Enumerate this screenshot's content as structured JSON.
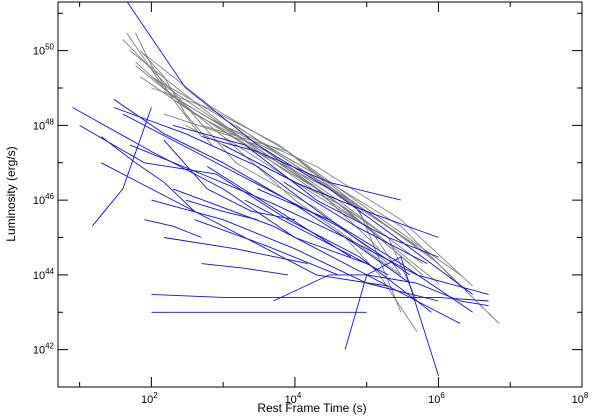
{
  "chart_data": {
    "type": "line",
    "title": "",
    "xlabel": "Rest Frame Time (s)",
    "ylabel": "Luminosity (erg/s)",
    "x_scale": "log",
    "y_scale": "log",
    "xlim": [
      5,
      100000000
    ],
    "ylim": [
      1e+41,
      2e+51
    ],
    "grid": false,
    "legend": "none",
    "x_ticks": [
      {
        "value": 100,
        "base": "10",
        "exp": "2"
      },
      {
        "value": 10000,
        "base": "10",
        "exp": "4"
      },
      {
        "value": 1000000,
        "base": "10",
        "exp": "6"
      },
      {
        "value": 100000000,
        "base": "10",
        "exp": "8"
      }
    ],
    "y_ticks": [
      {
        "value": 1e+42,
        "base": "10",
        "exp": "42"
      },
      {
        "value": 1e+44,
        "base": "10",
        "exp": "44"
      },
      {
        "value": 1e+46,
        "base": "10",
        "exp": "46"
      },
      {
        "value": 1e+48,
        "base": "10",
        "exp": "48"
      },
      {
        "value": 1e+50,
        "base": "10",
        "exp": "50"
      }
    ],
    "colors": {
      "grey_series": "#808080",
      "blue_series": "#1010c8",
      "axes": "#000000"
    },
    "series": [
      {
        "color": "grey",
        "x": [
          40,
          200,
          1500,
          20000,
          200000
        ],
        "y": [
          2e+50,
          8e+48,
          1e+47,
          6e+45,
          2e+44
        ]
      },
      {
        "color": "grey",
        "x": [
          50,
          500,
          5000,
          100000
        ],
        "y": [
          1e+50,
          3e+48,
          1e+47,
          2e+45
        ]
      },
      {
        "color": "grey",
        "x": [
          60,
          300,
          3000,
          60000,
          1000000
        ],
        "y": [
          5e+49,
          3e+48,
          2e+47,
          1e+46,
          2e+44
        ]
      },
      {
        "color": "grey",
        "x": [
          45,
          150,
          1000,
          10000,
          300000
        ],
        "y": [
          3e+50,
          1e+49,
          5e+47,
          1e+46,
          1e+44
        ]
      },
      {
        "color": "grey",
        "x": [
          70,
          400,
          4000,
          50000,
          600000
        ],
        "y": [
          2e+49,
          2e+48,
          2e+47,
          6e+45,
          1e+44
        ]
      },
      {
        "color": "grey",
        "x": [
          80,
          700,
          8000,
          100000,
          2000000
        ],
        "y": [
          8e+49,
          3e+48,
          2e+47,
          6e+45,
          1e+44
        ]
      },
      {
        "color": "grey",
        "x": [
          100,
          1000,
          20000,
          300000,
          3000000
        ],
        "y": [
          2e+49,
          1e+48,
          8e+46,
          3e+45,
          5e+43
        ]
      },
      {
        "color": "grey",
        "x": [
          150,
          1500,
          15000,
          200000
        ],
        "y": [
          8e+48,
          6e+47,
          3e+46,
          1e+45
        ]
      },
      {
        "color": "grey",
        "x": [
          200,
          2000,
          30000,
          500000
        ],
        "y": [
          5e+48,
          3e+47,
          2e+46,
          6e+44
        ]
      },
      {
        "color": "grey",
        "x": [
          60,
          200,
          2000,
          20000,
          150000
        ],
        "y": [
          4e+49,
          6e+48,
          4e+47,
          2e+46,
          5e+44
        ]
      },
      {
        "color": "grey",
        "x": [
          300,
          3000,
          40000,
          400000
        ],
        "y": [
          1e+48,
          1e+47,
          8e+45,
          2e+44
        ]
      },
      {
        "color": "grey",
        "x": [
          500,
          5000,
          60000,
          800000,
          7000000
        ],
        "y": [
          2e+48,
          2e+47,
          1e+46,
          3e+44,
          5e+42
        ]
      },
      {
        "color": "grey",
        "x": [
          1000,
          10000,
          100000,
          1000000
        ],
        "y": [
          5e+47,
          3e+46,
          2e+45,
          6e+43
        ]
      },
      {
        "color": "grey",
        "x": [
          2000,
          20000,
          200000,
          500000
        ],
        "y": [
          3e+47,
          2e+46,
          1e+45,
          2e+43
        ]
      },
      {
        "color": "grey",
        "x": [
          3000,
          30000,
          300000,
          2000000
        ],
        "y": [
          4e+47,
          3e+46,
          2e+45,
          5e+43
        ]
      },
      {
        "color": "grey",
        "x": [
          500,
          8000,
          80000,
          300000
        ],
        "y": [
          1e+48,
          2e+47,
          5e+45,
          1e+43
        ]
      },
      {
        "color": "grey",
        "x": [
          100,
          600,
          6000,
          60000,
          300000
        ],
        "y": [
          1e+49,
          3e+48,
          3e+47,
          1e+46,
          1e+44
        ]
      },
      {
        "color": "grey",
        "x": [
          150,
          3000,
          40000,
          600000
        ],
        "y": [
          2e+48,
          3e+47,
          1e+46,
          2e+44
        ]
      },
      {
        "color": "grey",
        "x": [
          1500,
          15000,
          150000
        ],
        "y": [
          1e+48,
          5e+46,
          3e+45
        ]
      },
      {
        "color": "grey",
        "x": [
          50000,
          150000,
          500000
        ],
        "y": [
          1e+45,
          1e+44,
          3e+42
        ]
      },
      {
        "color": "grey",
        "x": [
          60,
          100,
          200,
          500
        ],
        "y": [
          3e+50,
          4e+49,
          5e+48,
          5e+47
        ]
      },
      {
        "color": "grey",
        "x": [
          70,
          150,
          300,
          700
        ],
        "y": [
          1e+50,
          2e+49,
          2e+48,
          3e+47
        ]
      },
      {
        "color": "grey",
        "x": [
          100,
          800,
          10000
        ],
        "y": [
          2e+49,
          2e+48,
          1e+47
        ]
      },
      {
        "color": "blue",
        "x": [
          40,
          300,
          3000,
          30000,
          300000,
          3000000
        ],
        "y": [
          3e+51,
          1e+49,
          3e+47,
          2e+46,
          8e+44,
          3e+43
        ]
      },
      {
        "color": "blue",
        "x": [
          8,
          100,
          1000,
          10000,
          100000
        ],
        "y": [
          3e+48,
          2e+47,
          2e+46,
          1e+45,
          2e+44
        ]
      },
      {
        "color": "blue",
        "x": [
          10,
          80,
          800,
          8000,
          80000,
          800000
        ],
        "y": [
          1e+48,
          1e+47,
          5e+46,
          3e+45,
          3e+44,
          1e+43
        ]
      },
      {
        "color": "blue",
        "x": [
          15,
          40,
          100
        ],
        "y": [
          2e+45,
          2e+46,
          3e+48
        ]
      },
      {
        "color": "blue",
        "x": [
          20,
          200,
          2000,
          20000,
          200000
        ],
        "y": [
          1e+47,
          1e+46,
          1e+45,
          1e+44,
          5e+43
        ]
      },
      {
        "color": "blue",
        "x": [
          30,
          300,
          3000,
          30000
        ],
        "y": [
          3e+48,
          6e+47,
          8e+46,
          3e+45
        ]
      },
      {
        "color": "blue",
        "x": [
          100,
          1000,
          10000,
          100000,
          1000000
        ],
        "y": [
          1e+46,
          3e+45,
          5e+44,
          6e+43,
          2e+43
        ]
      },
      {
        "color": "blue",
        "x": [
          100,
          1000,
          10000,
          100000,
          1000000,
          5000000
        ],
        "y": [
          3e+43,
          2.5e+43,
          2.5e+43,
          2.5e+43,
          2.5e+43,
          2e+43
        ]
      },
      {
        "color": "blue",
        "x": [
          100,
          1000,
          10000,
          100000
        ],
        "y": [
          1e+43,
          1e+43,
          1e+43,
          1e+43
        ]
      },
      {
        "color": "blue",
        "x": [
          5000,
          30000,
          100000,
          500000,
          2000000,
          5000000
        ],
        "y": [
          2e+43,
          1e+44,
          1e+44,
          6e+43,
          2e+43,
          1.5e+43
        ]
      },
      {
        "color": "blue",
        "x": [
          50000,
          100000,
          300000,
          1000000
        ],
        "y": [
          1e+42,
          1e+44,
          3e+44,
          2e+41
        ]
      },
      {
        "color": "blue",
        "x": [
          500,
          3000,
          30000,
          300000
        ],
        "y": [
          5e+47,
          2e+47,
          3e+46,
          1e+46
        ]
      },
      {
        "color": "blue",
        "x": [
          200,
          2000,
          20000,
          200000,
          1000000
        ],
        "y": [
          1e+48,
          3e+47,
          1e+46,
          1e+45,
          3e+44
        ]
      },
      {
        "color": "blue",
        "x": [
          300,
          1000,
          3000
        ],
        "y": [
          1e+46,
          5e+45,
          3e+45
        ]
      },
      {
        "color": "blue",
        "x": [
          20,
          60,
          150,
          400
        ],
        "y": [
          5e+47,
          1e+47,
          3e+46,
          5e+45
        ]
      },
      {
        "color": "blue",
        "x": [
          50,
          500,
          5000,
          50000,
          500000,
          5000000
        ],
        "y": [
          3e+47,
          5e+46,
          8e+45,
          1e+45,
          1e+44,
          3e+43
        ]
      },
      {
        "color": "blue",
        "x": [
          1000,
          10000,
          100000,
          1000000
        ],
        "y": [
          3e+47,
          3e+46,
          5e+45,
          1e+45
        ]
      },
      {
        "color": "blue",
        "x": [
          80,
          200,
          500
        ],
        "y": [
          3e+45,
          2e+45,
          1e+45
        ]
      },
      {
        "color": "blue",
        "x": [
          150,
          1500,
          15000
        ],
        "y": [
          1e+45,
          5e+44,
          2e+44
        ]
      },
      {
        "color": "blue",
        "x": [
          400,
          4000,
          40000
        ],
        "y": [
          3e+45,
          6e+44,
          1e+44
        ]
      },
      {
        "color": "blue",
        "x": [
          200,
          5000,
          100000,
          2000000
        ],
        "y": [
          2e+46,
          2e+45,
          1e+44,
          5e+42
        ]
      },
      {
        "color": "blue",
        "x": [
          600,
          6000,
          60000
        ],
        "y": [
          8e+46,
          5e+45,
          3e+44
        ]
      },
      {
        "color": "blue",
        "x": [
          2000,
          20000,
          200000
        ],
        "y": [
          1e+46,
          1e+45,
          1e+44
        ]
      },
      {
        "color": "blue",
        "x": [
          30,
          150,
          1000,
          8000,
          60000,
          400000
        ],
        "y": [
          5e+48,
          6e+47,
          1e+47,
          1e+46,
          8e+44,
          6e+43
        ]
      },
      {
        "color": "blue",
        "x": [
          40,
          400,
          4000,
          40000,
          400000
        ],
        "y": [
          2e+48,
          2e+47,
          2e+46,
          2e+45,
          1e+44
        ]
      },
      {
        "color": "blue",
        "x": [
          500,
          2000,
          8000
        ],
        "y": [
          2e+44,
          1.5e+44,
          1e+44
        ]
      },
      {
        "color": "blue",
        "x": [
          3000,
          30000,
          300000,
          3000000
        ],
        "y": [
          2e+46,
          3e+45,
          2e+44,
          1e+43
        ]
      },
      {
        "color": "blue",
        "x": [
          150,
          600,
          2500,
          10000
        ],
        "y": [
          4e+47,
          2e+46,
          5e+45,
          3e+45
        ]
      },
      {
        "color": "blue",
        "x": [
          7000,
          70000,
          700000
        ],
        "y": [
          3e+46,
          2e+45,
          2e+44
        ]
      }
    ]
  }
}
